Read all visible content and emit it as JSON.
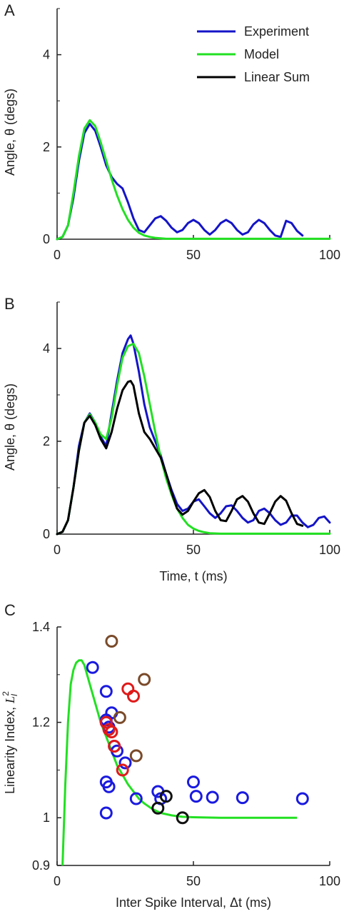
{
  "colors": {
    "experiment": "#1414c8",
    "model": "#22e022",
    "linear_sum": "#000000",
    "blue_circle": "#1a1ae0",
    "red_circle": "#e01a1a",
    "brown_circle": "#7a4a2a",
    "black_circle": "#111111"
  },
  "chart_data": [
    {
      "panel": "A",
      "type": "line",
      "ylabel": "Angle,  θ (degs)",
      "xlabel": "",
      "xlim": [
        0,
        100
      ],
      "ylim": [
        0,
        5
      ],
      "xticks": [
        0,
        50,
        100
      ],
      "yticks": [
        0,
        2,
        4
      ],
      "legend": {
        "position": "top-right",
        "entries": [
          "Experiment",
          "Model",
          "Linear Sum"
        ]
      },
      "series": [
        {
          "name": "Experiment",
          "color_key": "experiment",
          "x": [
            0,
            2,
            4,
            6,
            8,
            10,
            12,
            14,
            16,
            18,
            20,
            22,
            24,
            26,
            28,
            30,
            32,
            34,
            36,
            38,
            40,
            42,
            44,
            46,
            48,
            50,
            52,
            54,
            56,
            58,
            60,
            62,
            64,
            66,
            68,
            70,
            72,
            74,
            76,
            78,
            80,
            82,
            84,
            86,
            88,
            90
          ],
          "y": [
            0,
            0.05,
            0.3,
            0.9,
            1.7,
            2.3,
            2.5,
            2.35,
            2.0,
            1.6,
            1.35,
            1.2,
            1.1,
            0.8,
            0.45,
            0.2,
            0.15,
            0.3,
            0.45,
            0.5,
            0.4,
            0.25,
            0.15,
            0.2,
            0.35,
            0.42,
            0.35,
            0.2,
            0.1,
            0.2,
            0.35,
            0.42,
            0.35,
            0.2,
            0.1,
            0.15,
            0.32,
            0.42,
            0.35,
            0.2,
            0.08,
            0.05,
            0.4,
            0.35,
            0.18,
            0.08
          ]
        },
        {
          "name": "Model",
          "color_key": "model",
          "x": [
            0,
            2,
            4,
            6,
            8,
            10,
            12,
            14,
            16,
            18,
            20,
            22,
            24,
            26,
            28,
            30,
            32,
            34,
            36,
            38,
            40,
            45,
            50,
            60,
            70,
            80,
            90,
            100
          ],
          "y": [
            0,
            0.05,
            0.3,
            1.0,
            1.8,
            2.4,
            2.58,
            2.45,
            2.1,
            1.7,
            1.3,
            0.95,
            0.65,
            0.42,
            0.25,
            0.14,
            0.08,
            0.05,
            0.03,
            0.02,
            0.01,
            0.01,
            0.01,
            0.01,
            0.01,
            0.01,
            0.01,
            0.01
          ]
        }
      ]
    },
    {
      "panel": "B",
      "type": "line",
      "ylabel": "Angle,  θ (degs)",
      "xlabel": "Time, t (ms)",
      "xlim": [
        0,
        100
      ],
      "ylim": [
        0,
        5
      ],
      "xticks": [
        0,
        50,
        100
      ],
      "yticks": [
        0,
        2,
        4
      ],
      "series": [
        {
          "name": "Experiment",
          "color_key": "experiment",
          "x": [
            0,
            2,
            4,
            6,
            8,
            10,
            12,
            14,
            16,
            18,
            20,
            22,
            24,
            26,
            27,
            28,
            30,
            32,
            34,
            36,
            38,
            40,
            42,
            44,
            46,
            48,
            50,
            52,
            54,
            56,
            58,
            60,
            62,
            64,
            66,
            68,
            70,
            72,
            74,
            76,
            78,
            80,
            82,
            84,
            86,
            88,
            90,
            92,
            94,
            96,
            98,
            100
          ],
          "y": [
            0,
            0.05,
            0.3,
            1.0,
            1.9,
            2.4,
            2.6,
            2.4,
            2.1,
            1.9,
            2.6,
            3.3,
            3.9,
            4.2,
            4.28,
            4.1,
            3.5,
            2.8,
            2.3,
            2.0,
            1.7,
            1.3,
            0.95,
            0.65,
            0.5,
            0.55,
            0.7,
            0.75,
            0.6,
            0.45,
            0.35,
            0.45,
            0.6,
            0.62,
            0.5,
            0.35,
            0.25,
            0.3,
            0.5,
            0.55,
            0.45,
            0.3,
            0.2,
            0.25,
            0.4,
            0.4,
            0.25,
            0.15,
            0.2,
            0.35,
            0.38,
            0.25
          ]
        },
        {
          "name": "Model",
          "color_key": "model",
          "x": [
            0,
            2,
            4,
            6,
            8,
            10,
            12,
            14,
            16,
            18,
            20,
            22,
            24,
            26,
            28,
            30,
            32,
            34,
            36,
            38,
            40,
            42,
            44,
            46,
            48,
            50,
            52,
            54,
            56,
            60,
            70,
            80,
            90,
            100
          ],
          "y": [
            0,
            0.05,
            0.3,
            1.0,
            1.8,
            2.4,
            2.58,
            2.4,
            2.15,
            2.05,
            2.5,
            3.2,
            3.8,
            4.05,
            4.1,
            3.9,
            3.4,
            2.8,
            2.2,
            1.65,
            1.2,
            0.85,
            0.55,
            0.35,
            0.2,
            0.12,
            0.07,
            0.04,
            0.02,
            0.01,
            0.01,
            0.01,
            0.01,
            0.01
          ]
        },
        {
          "name": "Linear Sum",
          "color_key": "linear_sum",
          "x": [
            0,
            2,
            4,
            6,
            8,
            10,
            12,
            14,
            16,
            18,
            20,
            22,
            24,
            26,
            27,
            28,
            30,
            32,
            34,
            36,
            38,
            40,
            42,
            44,
            46,
            48,
            50,
            52,
            54,
            56,
            58,
            60,
            62,
            64,
            66,
            68,
            70,
            72,
            74,
            76,
            78,
            80,
            82,
            84,
            86,
            88,
            90
          ],
          "y": [
            0,
            0.05,
            0.3,
            1.0,
            1.8,
            2.4,
            2.55,
            2.35,
            2.05,
            1.85,
            2.2,
            2.7,
            3.1,
            3.28,
            3.3,
            3.2,
            2.6,
            2.2,
            2.05,
            1.85,
            1.65,
            1.3,
            0.9,
            0.55,
            0.42,
            0.5,
            0.7,
            0.88,
            0.95,
            0.8,
            0.5,
            0.3,
            0.28,
            0.5,
            0.75,
            0.82,
            0.7,
            0.45,
            0.25,
            0.22,
            0.45,
            0.7,
            0.82,
            0.72,
            0.45,
            0.22,
            0.18
          ]
        }
      ]
    },
    {
      "panel": "C",
      "type": "scatter",
      "ylabel": "Linearity Index, L₁²",
      "xlabel": "Inter Spike Interval, Δt (ms)",
      "xlim": [
        0,
        100
      ],
      "ylim": [
        0.9,
        1.4
      ],
      "xticks": [
        0,
        50,
        100
      ],
      "yticks": [
        0.9,
        1,
        1.2,
        1.4
      ],
      "ytick_labels": [
        "0.9",
        "1",
        "1.2",
        "1.4"
      ],
      "model_curve": {
        "color_key": "model",
        "x": [
          2,
          3,
          4,
          5,
          6,
          7,
          8,
          9,
          10,
          11,
          12,
          14,
          16,
          18,
          20,
          22,
          24,
          26,
          28,
          30,
          32,
          35,
          38,
          42,
          46,
          50,
          60,
          70,
          80,
          88
        ],
        "y": [
          0.9,
          1.07,
          1.2,
          1.28,
          1.31,
          1.325,
          1.33,
          1.33,
          1.32,
          1.3,
          1.28,
          1.24,
          1.2,
          1.17,
          1.14,
          1.11,
          1.09,
          1.07,
          1.055,
          1.04,
          1.03,
          1.018,
          1.01,
          1.005,
          1.002,
          1.001,
          1.0,
          1.0,
          1.0,
          1.0
        ]
      },
      "points": [
        {
          "group": "blue",
          "color_key": "blue_circle",
          "x": [
            13,
            18,
            18,
            18,
            19,
            20,
            21,
            22,
            25,
            18,
            19,
            18,
            29,
            37,
            38,
            50,
            51,
            57,
            68,
            90
          ],
          "y": [
            1.315,
            1.265,
            1.205,
            1.2,
            1.19,
            1.22,
            1.15,
            1.14,
            1.115,
            1.075,
            1.065,
            1.01,
            1.04,
            1.055,
            1.04,
            1.075,
            1.045,
            1.043,
            1.042,
            1.04
          ]
        },
        {
          "group": "red",
          "color_key": "red_circle",
          "x": [
            18,
            19,
            20,
            21,
            24,
            26,
            28
          ],
          "y": [
            1.2,
            1.185,
            1.18,
            1.15,
            1.1,
            1.27,
            1.255
          ]
        },
        {
          "group": "brown",
          "color_key": "brown_circle",
          "x": [
            20,
            23,
            29,
            32
          ],
          "y": [
            1.37,
            1.21,
            1.13,
            1.29
          ]
        },
        {
          "group": "black",
          "color_key": "black_circle",
          "x": [
            37,
            40,
            46
          ],
          "y": [
            1.02,
            1.045,
            1.0
          ]
        }
      ]
    }
  ],
  "panels": {
    "A": {
      "letter": "A",
      "ylabel": "Angle,  θ (degs)",
      "xticks": [
        "0",
        "50",
        "100"
      ],
      "yticks": [
        "0",
        "2",
        "4"
      ]
    },
    "B": {
      "letter": "B",
      "ylabel": "Angle,  θ (degs)",
      "xlabel": "Time, t (ms)",
      "xticks": [
        "0",
        "50",
        "100"
      ],
      "yticks": [
        "0",
        "2",
        "4"
      ]
    },
    "C": {
      "letter": "C",
      "ylabel": "Linearity Index, ",
      "ylabel_sym": "L",
      "xlabel": "Inter Spike Interval, Δt (ms)",
      "xticks": [
        "0",
        "50",
        "100"
      ],
      "yticks": [
        "0.9",
        "1",
        "1.2",
        "1.4"
      ]
    }
  },
  "legend": {
    "experiment": "Experiment",
    "model": "Model",
    "linear_sum": "Linear Sum"
  }
}
